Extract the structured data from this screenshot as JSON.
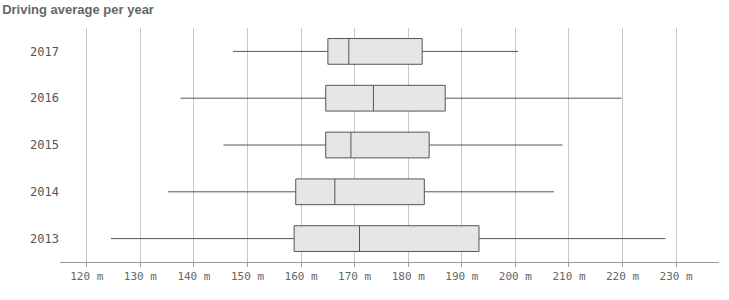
{
  "chart_data": {
    "type": "box",
    "title": "Driving average per year",
    "orientation": "horizontal",
    "categories": [
      "2013",
      "2014",
      "2015",
      "2016",
      "2017"
    ],
    "lower": [
      124.5,
      135.2,
      145.5,
      137.5,
      147.3
    ],
    "q1": [
      158.7,
      159.0,
      164.6,
      164.6,
      165.0
    ],
    "median": [
      170.9,
      166.3,
      169.3,
      173.5,
      168.9
    ],
    "q3": [
      193.2,
      183.0,
      183.9,
      186.9,
      182.6
    ],
    "upper": [
      228.0,
      207.2,
      208.8,
      219.8,
      200.5
    ],
    "color": "#e6e6e6",
    "xlim": [
      115,
      238
    ],
    "xticks": [
      {
        "value": 120,
        "label": "120 m"
      },
      {
        "value": 130,
        "label": "130 m"
      },
      {
        "value": 140,
        "label": "140 m"
      },
      {
        "value": 150,
        "label": "150 m"
      },
      {
        "value": 160,
        "label": "160 m"
      },
      {
        "value": 170,
        "label": "170 m"
      },
      {
        "value": 180,
        "label": "180 m"
      },
      {
        "value": 190,
        "label": "190 m"
      },
      {
        "value": 200,
        "label": "200 m"
      },
      {
        "value": 210,
        "label": "210 m"
      },
      {
        "value": 220,
        "label": "220 m"
      },
      {
        "value": 230,
        "label": "230 m"
      }
    ],
    "grid": true
  }
}
